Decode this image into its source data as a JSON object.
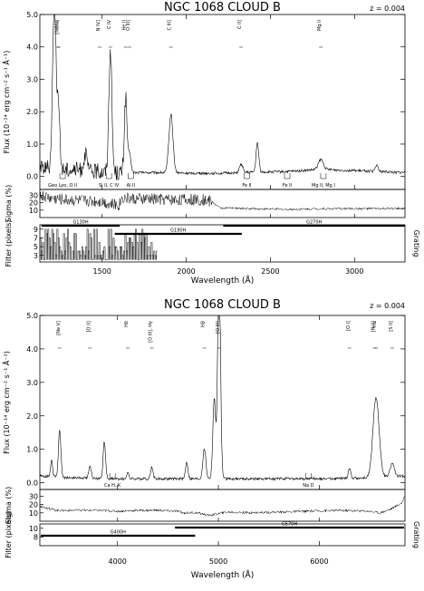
{
  "chart_data": [
    {
      "type": "line",
      "title": "NGC 1068 CLOUD B",
      "redshift_label": "z = 0.004",
      "xlabel": "Wavelength (Å)",
      "ylabel_flux": "Flux (10⁻¹⁴ erg cm⁻² s⁻¹ Å⁻¹)",
      "ylabel_sigma": "Sigma (%)",
      "ylabel_filter": "Filter (pixels)",
      "ylabel_grating": "Grating",
      "xlim": [
        1130,
        3300
      ],
      "xticks": [
        1500,
        2000,
        2500,
        3000
      ],
      "flux_ylim": [
        -0.4,
        5.0
      ],
      "flux_yticks": [
        0.0,
        1.0,
        2.0,
        3.0,
        4.0,
        5.0
      ],
      "flux_ytick_labels": [
        "0.0",
        "1.0",
        "2.0",
        "3.0",
        "4.0",
        "5.0"
      ],
      "sigma_ylim": [
        0,
        38
      ],
      "sigma_yticks": [
        10,
        20,
        30
      ],
      "filter_ylim": [
        1.5,
        10
      ],
      "filter_yticks": [
        3,
        5,
        7,
        9
      ],
      "continuum": [
        [
          1130,
          0.3
        ],
        [
          1200,
          0.28
        ],
        [
          1300,
          0.22
        ],
        [
          1400,
          0.18
        ],
        [
          1500,
          0.15
        ],
        [
          1600,
          0.12
        ],
        [
          1700,
          0.12
        ],
        [
          1800,
          0.12
        ],
        [
          1900,
          0.12
        ],
        [
          2000,
          0.1
        ],
        [
          2200,
          0.1
        ],
        [
          2400,
          0.13
        ],
        [
          2600,
          0.15
        ],
        [
          2800,
          0.22
        ],
        [
          3000,
          0.18
        ],
        [
          3200,
          0.14
        ],
        [
          3300,
          0.12
        ]
      ],
      "lines": [
        {
          "center": 1216,
          "height": 5.2,
          "width": 10
        },
        {
          "center": 1240,
          "height": 1.8,
          "width": 8
        },
        {
          "center": 1400,
          "height": 0.5,
          "width": 10
        },
        {
          "center": 1549,
          "height": 3.8,
          "width": 9
        },
        {
          "center": 1640,
          "height": 2.3,
          "width": 8
        },
        {
          "center": 1663,
          "height": 0.6,
          "width": 8
        },
        {
          "center": 1909,
          "height": 1.8,
          "width": 12
        },
        {
          "center": 2326,
          "height": 0.25,
          "width": 10
        },
        {
          "center": 2423,
          "height": 0.9,
          "width": 8
        },
        {
          "center": 2800,
          "height": 0.3,
          "width": 15
        },
        {
          "center": 3133,
          "height": 0.2,
          "width": 8
        }
      ],
      "sigma_profile": [
        [
          1130,
          30
        ],
        [
          1200,
          26
        ],
        [
          1300,
          24
        ],
        [
          1400,
          23
        ],
        [
          1500,
          22
        ],
        [
          1550,
          18
        ],
        [
          1600,
          17
        ],
        [
          1620,
          27
        ],
        [
          1700,
          25
        ],
        [
          1800,
          25
        ],
        [
          2000,
          24
        ],
        [
          2100,
          24
        ],
        [
          2150,
          22
        ],
        [
          2200,
          13
        ],
        [
          2400,
          12
        ],
        [
          2600,
          11
        ],
        [
          2800,
          12
        ],
        [
          3000,
          12
        ],
        [
          3200,
          12
        ],
        [
          3300,
          12
        ]
      ],
      "line_labels": [
        {
          "text": "[Ne V]",
          "x": 1240
        },
        {
          "text": "N V",
          "x": 1240
        },
        {
          "text": "N IV]",
          "x": 1486
        },
        {
          "text": "C IV",
          "x": 1549
        },
        {
          "text": "He II",
          "x": 1640
        },
        {
          "text": "O III]",
          "x": 1663
        },
        {
          "text": "C III]",
          "x": 1909
        },
        {
          "text": "C II]",
          "x": 2326
        },
        {
          "text": "Mg II",
          "x": 2800
        }
      ],
      "abs_labels": [
        {
          "text": "Geo Lyα, O II",
          "x": 1265
        },
        {
          "text": "Si II, C IV",
          "x": 1540
        },
        {
          "text": "Al II",
          "x": 1670
        },
        {
          "text": "Fe II",
          "x": 2360
        },
        {
          "text": "Fe II",
          "x": 2600
        },
        {
          "text": "Mg II, Mg I",
          "x": 2815
        }
      ],
      "gratings": [
        {
          "name": "G130H",
          "from": 1140,
          "to": 1605
        },
        {
          "name": "G190H",
          "from": 1575,
          "to": 2330
        },
        {
          "name": "G270H",
          "from": 2220,
          "to": 3300
        }
      ],
      "filter_series": [
        [
          1130,
          9
        ],
        [
          1180,
          7
        ],
        [
          1220,
          9
        ],
        [
          1260,
          5
        ],
        [
          1300,
          7
        ],
        [
          1360,
          4
        ],
        [
          1400,
          6
        ],
        [
          1450,
          3
        ],
        [
          1500,
          5
        ],
        [
          1540,
          9
        ],
        [
          1580,
          3
        ],
        [
          1620,
          7
        ],
        [
          1660,
          4
        ],
        [
          1700,
          6
        ],
        [
          1740,
          3
        ],
        [
          1780,
          5
        ],
        [
          1820,
          3
        ]
      ]
    },
    {
      "type": "line",
      "title": "NGC 1068 CLOUD B",
      "redshift_label": "z = 0.004",
      "xlabel": "Wavelength (Å)",
      "ylabel_flux": "Flux (10⁻¹⁴ erg cm⁻² s⁻¹ Å⁻¹)",
      "ylabel_sigma": "Sigma (%)",
      "ylabel_filter": "Filter (pixels)",
      "ylabel_grating": "Grating",
      "xlim": [
        3230,
        6850
      ],
      "xticks": [
        4000,
        5000,
        6000
      ],
      "flux_ylim": [
        -0.2,
        5.0
      ],
      "flux_yticks": [
        0.0,
        1.0,
        2.0,
        3.0,
        4.0,
        5.0
      ],
      "flux_ytick_labels": [
        "0.0",
        "1.0",
        "2.0",
        "3.0",
        "4.0",
        "5.0"
      ],
      "sigma_ylim": [
        0,
        38
      ],
      "sigma_yticks": [
        10,
        20,
        30
      ],
      "filter_ylim": [
        6,
        11
      ],
      "filter_yticks": [
        8,
        10
      ],
      "continuum": [
        [
          3230,
          0.2
        ],
        [
          3500,
          0.15
        ],
        [
          4000,
          0.12
        ],
        [
          4500,
          0.12
        ],
        [
          5000,
          0.12
        ],
        [
          5500,
          0.12
        ],
        [
          6000,
          0.12
        ],
        [
          6500,
          0.15
        ],
        [
          6850,
          0.2
        ]
      ],
      "lines": [
        {
          "center": 3346,
          "height": 0.5,
          "width": 10
        },
        {
          "center": 3426,
          "height": 1.4,
          "width": 12
        },
        {
          "center": 3727,
          "height": 0.4,
          "width": 12
        },
        {
          "center": 3869,
          "height": 1.1,
          "width": 12
        },
        {
          "center": 4101,
          "height": 0.2,
          "width": 10
        },
        {
          "center": 4340,
          "height": 0.35,
          "width": 12
        },
        {
          "center": 4686,
          "height": 0.5,
          "width": 12
        },
        {
          "center": 4861,
          "height": 0.9,
          "width": 15
        },
        {
          "center": 4959,
          "height": 2.4,
          "width": 14
        },
        {
          "center": 5007,
          "height": 6.5,
          "width": 14
        },
        {
          "center": 6300,
          "height": 0.3,
          "width": 12
        },
        {
          "center": 6563,
          "height": 2.4,
          "width": 30
        },
        {
          "center": 6724,
          "height": 0.4,
          "width": 20
        }
      ],
      "sigma_profile": [
        [
          3230,
          18
        ],
        [
          3400,
          13
        ],
        [
          3600,
          13
        ],
        [
          3800,
          13
        ],
        [
          4000,
          12
        ],
        [
          4200,
          13
        ],
        [
          4400,
          13
        ],
        [
          4600,
          12
        ],
        [
          4650,
          10
        ],
        [
          4800,
          10
        ],
        [
          4900,
          7
        ],
        [
          5000,
          9
        ],
        [
          5100,
          11
        ],
        [
          5300,
          10
        ],
        [
          5600,
          11
        ],
        [
          5900,
          12
        ],
        [
          6200,
          13
        ],
        [
          6500,
          12
        ],
        [
          6600,
          10
        ],
        [
          6700,
          14
        ],
        [
          6820,
          22
        ],
        [
          6850,
          30
        ]
      ],
      "line_labels": [
        {
          "text": "[Ne V]",
          "x": 3426
        },
        {
          "text": "[O II]",
          "x": 3727
        },
        {
          "text": "Hδ",
          "x": 4101
        },
        {
          "text": "[O III], Hγ",
          "x": 4340
        },
        {
          "text": "Hβ",
          "x": 4861
        },
        {
          "text": "[O III]",
          "x": 5007
        },
        {
          "text": "[O I]",
          "x": 6300
        },
        {
          "text": "[N II]",
          "x": 6548
        },
        {
          "text": "Hα",
          "x": 6563
        },
        {
          "text": "[S II]",
          "x": 6724
        }
      ],
      "abs_labels": [
        {
          "text": "Ca H, K",
          "x": 3950
        },
        {
          "text": "Na D",
          "x": 5892
        }
      ],
      "gratings": [
        {
          "name": "G400H",
          "from": 3240,
          "to": 4770
        },
        {
          "name": "G570H",
          "from": 4570,
          "to": 6840
        }
      ]
    }
  ]
}
